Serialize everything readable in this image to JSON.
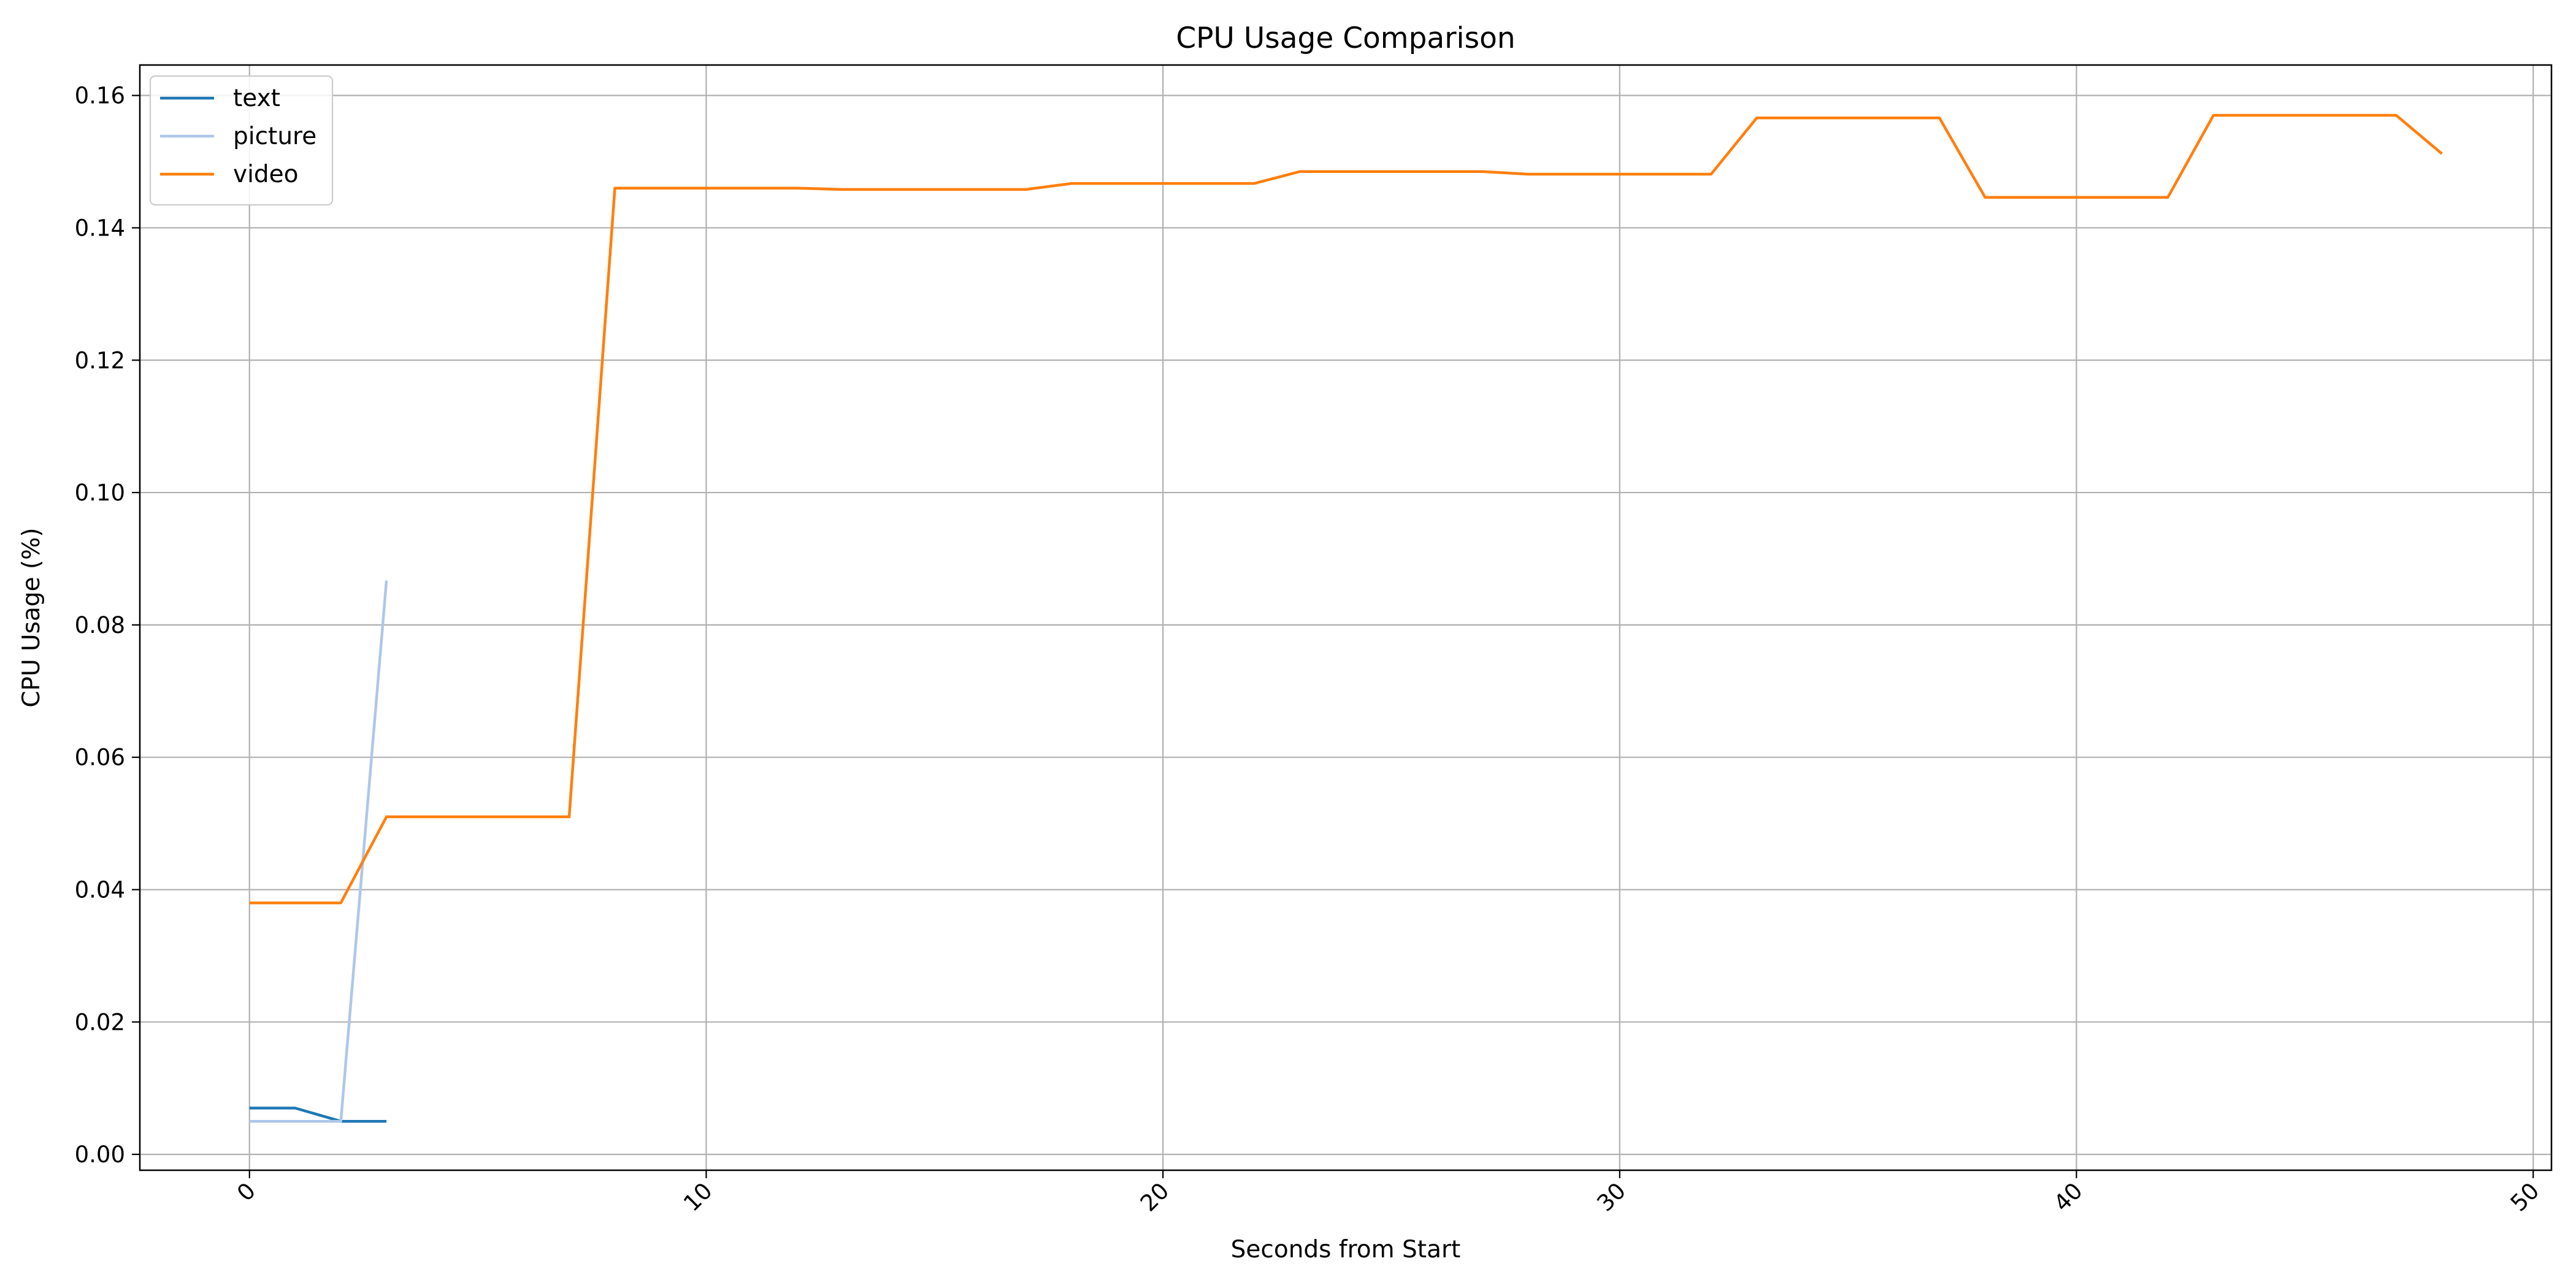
{
  "chart_data": {
    "type": "line",
    "title": "CPU Usage Comparison",
    "xlabel": "Seconds from Start",
    "ylabel": "CPU Usage (%)",
    "xlim": [
      -2.4,
      50.4
    ],
    "ylim": [
      -0.0024,
      0.1646
    ],
    "x_ticks": [
      0,
      10,
      20,
      30,
      40,
      50
    ],
    "x_tick_labels": [
      "0",
      "10",
      "20",
      "30",
      "40",
      "50"
    ],
    "x_tick_rotation": 45,
    "y_ticks": [
      0.0,
      0.02,
      0.04,
      0.06,
      0.08,
      0.1,
      0.12,
      0.14,
      0.16
    ],
    "y_tick_labels": [
      "0.00",
      "0.02",
      "0.04",
      "0.06",
      "0.08",
      "0.10",
      "0.12",
      "0.14",
      "0.16"
    ],
    "grid": true,
    "legend_position": "top-left",
    "series": [
      {
        "name": "text",
        "color": "#1f77b4",
        "x": [
          0,
          1,
          2,
          3
        ],
        "y": [
          0.007,
          0.007,
          0.005,
          0.005
        ]
      },
      {
        "name": "picture",
        "color": "#aec7e8",
        "x": [
          0,
          1,
          2,
          3
        ],
        "y": [
          0.005,
          0.005,
          0.005,
          0.0867
        ]
      },
      {
        "name": "video",
        "color": "#ff7f0e",
        "x": [
          0,
          1,
          2,
          3,
          4,
          5,
          6,
          7,
          8,
          9,
          10,
          11,
          12,
          13,
          14,
          15,
          16,
          17,
          18,
          19,
          20,
          21,
          22,
          23,
          24,
          25,
          26,
          27,
          28,
          29,
          30,
          31,
          32,
          33,
          34,
          35,
          36,
          37,
          38,
          39,
          40,
          41,
          42,
          43,
          44,
          45,
          46,
          47,
          48
        ],
        "y": [
          0.038,
          0.038,
          0.038,
          0.051,
          0.051,
          0.051,
          0.051,
          0.051,
          0.146,
          0.146,
          0.146,
          0.146,
          0.146,
          0.1458,
          0.1458,
          0.1458,
          0.1458,
          0.1458,
          0.1467,
          0.1467,
          0.1467,
          0.1467,
          0.1467,
          0.1485,
          0.1485,
          0.1485,
          0.1485,
          0.1485,
          0.1481,
          0.1481,
          0.1481,
          0.1481,
          0.1481,
          0.1566,
          0.1566,
          0.1566,
          0.1566,
          0.1566,
          0.1446,
          0.1446,
          0.1446,
          0.1446,
          0.1446,
          0.157,
          0.157,
          0.157,
          0.157,
          0.157,
          0.1512
        ]
      }
    ]
  }
}
